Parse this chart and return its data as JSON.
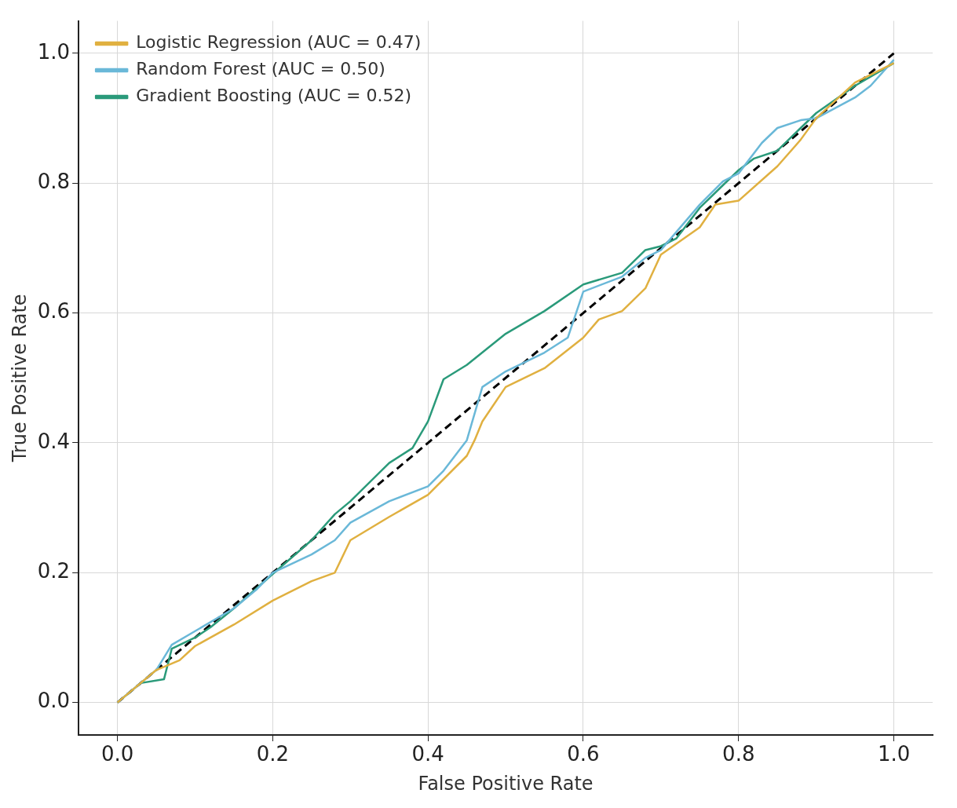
{
  "chart_data": {
    "type": "line",
    "xlabel": "False Positive Rate",
    "ylabel": "True Positive Rate",
    "xlim": [
      -0.05,
      1.05
    ],
    "ylim": [
      -0.05,
      1.05
    ],
    "xticks": [
      {
        "value": 0,
        "label": "0.0"
      },
      {
        "value": 0.2,
        "label": "0.2"
      },
      {
        "value": 0.4,
        "label": "0.4"
      },
      {
        "value": 0.6,
        "label": "0.6"
      },
      {
        "value": 0.8,
        "label": "0.8"
      },
      {
        "value": 1,
        "label": "1.0"
      }
    ],
    "yticks": [
      {
        "value": 0,
        "label": "0.0"
      },
      {
        "value": 0.2,
        "label": "0.2"
      },
      {
        "value": 0.4,
        "label": "0.4"
      },
      {
        "value": 0.6,
        "label": "0.6"
      },
      {
        "value": 0.8,
        "label": "0.8"
      },
      {
        "value": 1,
        "label": "1.0"
      }
    ],
    "grid": true,
    "legend": "top left",
    "marker": "none",
    "series": [
      {
        "name": "Logistic Regression (AUC = 0.47)",
        "color": "#e0b040",
        "x": [
          0,
          0.05,
          0.08,
          0.1,
          0.15,
          0.2,
          0.25,
          0.28,
          0.3,
          0.35,
          0.4,
          0.45,
          0.46,
          0.47,
          0.5,
          0.55,
          0.6,
          0.62,
          0.65,
          0.68,
          0.7,
          0.75,
          0.77,
          0.8,
          0.85,
          0.88,
          0.9,
          0.95,
          1
        ],
        "values": [
          0,
          0.05,
          0.065,
          0.087,
          0.12,
          0.157,
          0.187,
          0.2,
          0.25,
          0.286,
          0.32,
          0.38,
          0.404,
          0.433,
          0.486,
          0.515,
          0.562,
          0.59,
          0.603,
          0.638,
          0.69,
          0.732,
          0.767,
          0.773,
          0.826,
          0.867,
          0.9,
          0.955,
          0.985
        ]
      },
      {
        "name": "Random Forest (AUC = 0.50)",
        "color": "#6ab8d8",
        "x": [
          0,
          0.05,
          0.07,
          0.1,
          0.15,
          0.18,
          0.2,
          0.25,
          0.28,
          0.3,
          0.35,
          0.4,
          0.42,
          0.45,
          0.47,
          0.5,
          0.55,
          0.58,
          0.6,
          0.65,
          0.68,
          0.7,
          0.75,
          0.78,
          0.8,
          0.83,
          0.85,
          0.88,
          0.9,
          0.95,
          0.97,
          1
        ],
        "values": [
          0,
          0.05,
          0.089,
          0.11,
          0.145,
          0.175,
          0.2,
          0.228,
          0.25,
          0.277,
          0.31,
          0.333,
          0.357,
          0.404,
          0.486,
          0.51,
          0.539,
          0.562,
          0.633,
          0.656,
          0.685,
          0.697,
          0.767,
          0.803,
          0.815,
          0.862,
          0.885,
          0.897,
          0.9,
          0.932,
          0.95,
          0.99
        ]
      },
      {
        "name": "Gradient Boosting (AUC = 0.52)",
        "color": "#2a9a7a",
        "x": [
          0,
          0.03,
          0.06,
          0.07,
          0.1,
          0.12,
          0.15,
          0.2,
          0.25,
          0.28,
          0.3,
          0.35,
          0.38,
          0.4,
          0.42,
          0.45,
          0.5,
          0.55,
          0.6,
          0.65,
          0.68,
          0.7,
          0.72,
          0.75,
          0.78,
          0.8,
          0.82,
          0.85,
          0.88,
          0.9,
          0.95,
          1
        ],
        "values": [
          0,
          0.03,
          0.036,
          0.083,
          0.1,
          0.116,
          0.145,
          0.198,
          0.25,
          0.29,
          0.31,
          0.369,
          0.392,
          0.433,
          0.498,
          0.52,
          0.568,
          0.603,
          0.644,
          0.662,
          0.697,
          0.703,
          0.715,
          0.762,
          0.797,
          0.82,
          0.838,
          0.85,
          0.885,
          0.908,
          0.95,
          0.985
        ]
      },
      {
        "color": "#000000",
        "line_style": "dashed",
        "x": [
          0,
          1
        ],
        "values": [
          0,
          1
        ]
      }
    ]
  }
}
